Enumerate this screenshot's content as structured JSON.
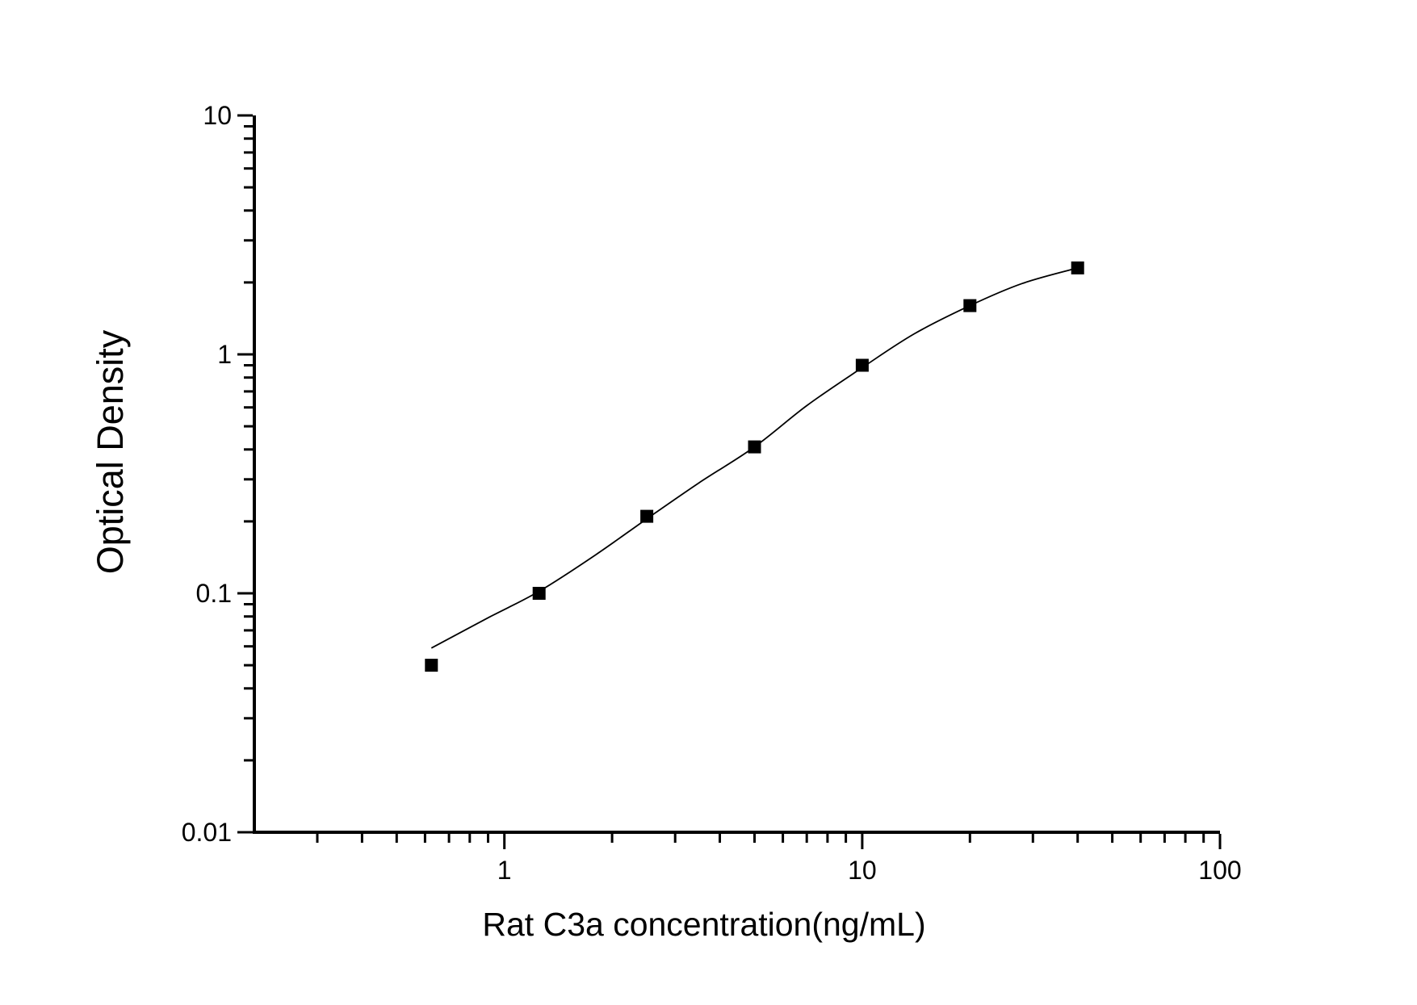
{
  "page": {
    "background": "#ffffff",
    "foreground": "#000000"
  },
  "chart_data": {
    "type": "scatter",
    "title": "",
    "xlabel": "Rat C3a concentration(ng/mL)",
    "ylabel": "Optical Density",
    "x_scale": "log",
    "y_scale": "log",
    "xlim": [
      0.2,
      100
    ],
    "ylim": [
      0.01,
      10
    ],
    "grid": false,
    "legend_position": "none",
    "axis_color": "#000000",
    "x_major_ticks": [
      {
        "value": 1,
        "label": "1"
      },
      {
        "value": 10,
        "label": "10"
      },
      {
        "value": 100,
        "label": "100"
      }
    ],
    "y_major_ticks": [
      {
        "value": 0.01,
        "label": "0.01"
      },
      {
        "value": 0.1,
        "label": "0.1"
      },
      {
        "value": 1,
        "label": "1"
      },
      {
        "value": 10,
        "label": "10"
      }
    ],
    "minor_ticks": true,
    "series": [
      {
        "name": "standard-points",
        "type": "scatter",
        "marker": "square",
        "marker_size": 16,
        "color": "#000000",
        "points": [
          {
            "x": 0.625,
            "y": 0.05
          },
          {
            "x": 1.25,
            "y": 0.1
          },
          {
            "x": 2.5,
            "y": 0.21
          },
          {
            "x": 5,
            "y": 0.41
          },
          {
            "x": 10,
            "y": 0.9
          },
          {
            "x": 20,
            "y": 1.6
          },
          {
            "x": 40,
            "y": 2.3
          }
        ]
      },
      {
        "name": "fit-curve",
        "type": "line",
        "color": "#000000",
        "line_width": 1.8,
        "points": [
          {
            "x": 0.625,
            "y": 0.059
          },
          {
            "x": 0.9,
            "y": 0.079
          },
          {
            "x": 1.25,
            "y": 0.102
          },
          {
            "x": 1.8,
            "y": 0.145
          },
          {
            "x": 2.5,
            "y": 0.205
          },
          {
            "x": 3.5,
            "y": 0.29
          },
          {
            "x": 5,
            "y": 0.41
          },
          {
            "x": 7,
            "y": 0.61
          },
          {
            "x": 10,
            "y": 0.88
          },
          {
            "x": 14,
            "y": 1.22
          },
          {
            "x": 20,
            "y": 1.6
          },
          {
            "x": 28,
            "y": 1.98
          },
          {
            "x": 40,
            "y": 2.3
          }
        ]
      }
    ]
  }
}
